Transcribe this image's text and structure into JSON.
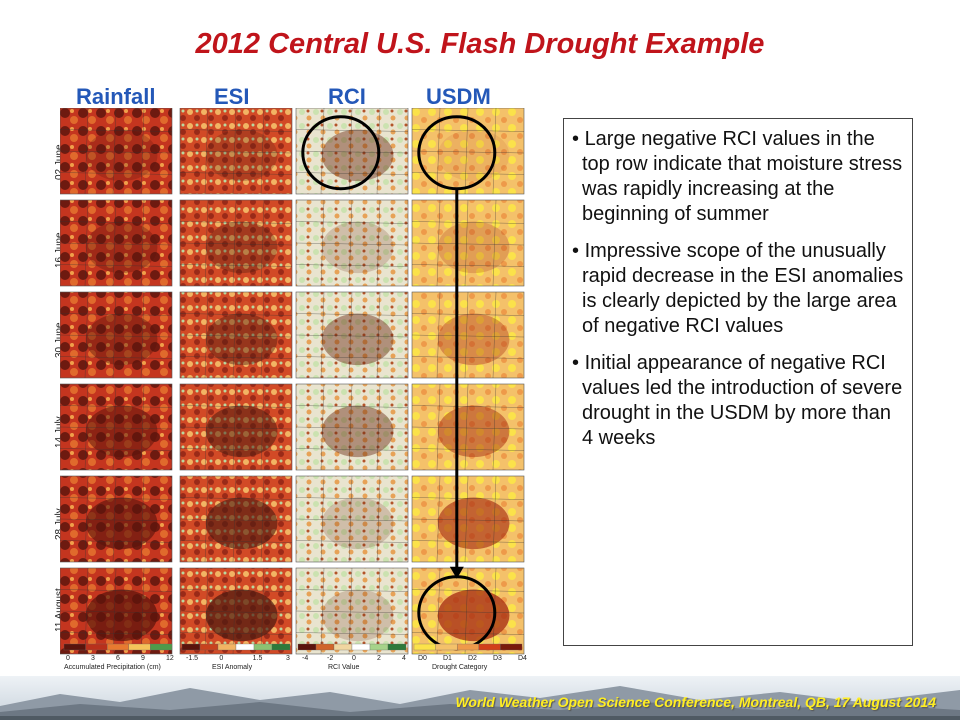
{
  "title": "2012 Central U.S. Flash Drought Example",
  "column_headers": [
    "Rainfall",
    "ESI",
    "RCI",
    "USDM"
  ],
  "row_dates": [
    "02 June",
    "16 June",
    "30 June",
    "14 July",
    "28 July",
    "11 August"
  ],
  "legends": [
    {
      "title": "Accumulated Precipitation (cm)",
      "ticks": [
        "0",
        "3",
        "6",
        "9",
        "12"
      ]
    },
    {
      "title": "ESI Anomaly",
      "ticks": [
        "-1.5",
        "0",
        "1.5",
        "3"
      ]
    },
    {
      "title": "RCI Value",
      "ticks": [
        "-4",
        "-2",
        "0",
        "2",
        "4"
      ]
    },
    {
      "title": "Drought Category",
      "ticks": [
        "D0",
        "D1",
        "D2",
        "D3",
        "D4"
      ]
    }
  ],
  "bullets": [
    "Large negative RCI values in the top row indicate that moisture stress was rapidly increasing at the beginning of summer",
    "Impressive scope of the unusually rapid decrease in the ESI anomalies is clearly depicted by the large area of negative RCI values",
    "Initial appearance of negative RCI values led the introduction of severe drought in the USDM by more than 4 weeks"
  ],
  "footer": "World Weather Open Science Conference, Montreal, QB, 17 August 2014",
  "colors": {
    "title": "#c0141b",
    "headers": "#2458b8",
    "annotation": "#000000",
    "footer_text": "#ffee22"
  },
  "annotation_markers": [
    {
      "row": 0,
      "column": 2,
      "shape": "circle"
    },
    {
      "row": 0,
      "column": 3,
      "shape": "circle"
    },
    {
      "row": 5,
      "column": 3,
      "shape": "circle"
    },
    {
      "from_row": 0,
      "to_row": 5,
      "column": 3,
      "shape": "arrow"
    }
  ]
}
